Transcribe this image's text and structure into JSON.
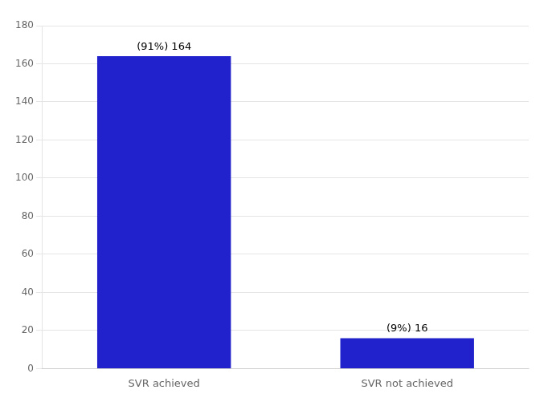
{
  "chart_data": {
    "type": "bar",
    "categories": [
      "SVR achieved",
      "SVR not achieved"
    ],
    "values": [
      164,
      16
    ],
    "value_labels": [
      "(91%) 164",
      "(9%) 16"
    ],
    "data_labels": true,
    "color": "#2222cc",
    "ylim": [
      0,
      180
    ],
    "yticks": [
      0,
      20,
      40,
      60,
      80,
      100,
      120,
      140,
      160,
      180
    ],
    "grid": true
  }
}
